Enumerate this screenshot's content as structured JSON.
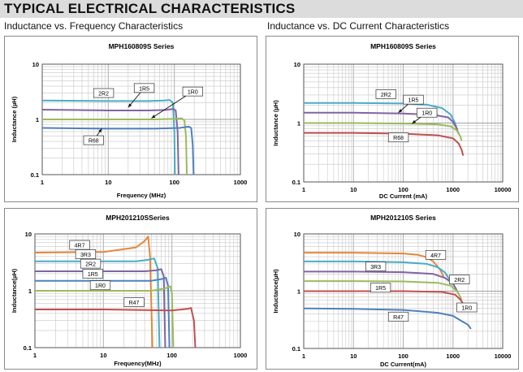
{
  "page": {
    "title": "TYPICAL ELECTRICAL CHARACTERISTICS",
    "subtitle_left": "Inductance vs. Frequency Characteristics",
    "subtitle_right": "Inductance vs. DC Current Characteristics"
  },
  "chart_data": [
    {
      "type": "line",
      "title": "MPH160809S Series",
      "xlabel": "Frequency (MHz)",
      "ylabel": "Inductance (µH)",
      "xscale": "log",
      "yscale": "log",
      "xlim": [
        1,
        1000
      ],
      "ylim": [
        0.1,
        10
      ],
      "xticks": [
        "1",
        "10",
        "100",
        "1000"
      ],
      "yticks": [
        "0.1",
        "1",
        "10"
      ],
      "grid": true,
      "series": [
        {
          "name": "2R2",
          "color": "#4aacc6",
          "label_at": [
            8.5,
            3.0
          ],
          "x": [
            1,
            10,
            40,
            70,
            85,
            95,
            100,
            102
          ],
          "y": [
            2.2,
            2.15,
            2.15,
            2.2,
            2.25,
            2.0,
            0.6,
            0.1
          ]
        },
        {
          "name": "1R5",
          "color": "#8064a2",
          "label_at": [
            35,
            3.7
          ],
          "x": [
            1,
            10,
            40,
            75,
            95,
            105,
            112,
            116
          ],
          "y": [
            1.5,
            1.45,
            1.45,
            1.48,
            1.55,
            1.45,
            0.6,
            0.1
          ]
        },
        {
          "name": "1R0",
          "color": "#9bbb59",
          "label_at": [
            190,
            3.2
          ],
          "x": [
            1,
            10,
            50,
            100,
            130,
            142,
            150,
            155
          ],
          "y": [
            1.0,
            1.0,
            1.0,
            1.02,
            1.05,
            0.95,
            0.5,
            0.1
          ]
        },
        {
          "name": "R68",
          "color": "#4f81bd",
          "label_at": [
            6,
            0.42
          ],
          "x": [
            1,
            10,
            50,
            120,
            165,
            180,
            190,
            196
          ],
          "y": [
            0.7,
            0.68,
            0.68,
            0.7,
            0.74,
            0.7,
            0.35,
            0.1
          ]
        }
      ],
      "annotations": [
        {
          "text": "2R2",
          "label_at": [
            8.5,
            3.0
          ],
          "arrow_to": null
        },
        {
          "text": "1R5",
          "label_at": [
            35,
            3.7
          ],
          "arrow_to": [
            20,
            1.65
          ]
        },
        {
          "text": "1R0",
          "label_at": [
            190,
            3.2
          ],
          "arrow_to": [
            45,
            1.05
          ]
        },
        {
          "text": "R68",
          "label_at": [
            6,
            0.42
          ],
          "arrow_to": [
            8,
            0.68
          ]
        }
      ]
    },
    {
      "type": "line",
      "title": "MPH160809S Series",
      "xlabel": "DC Current (mA)",
      "ylabel": "Inductance (µH)",
      "xscale": "log",
      "yscale": "log",
      "xlim": [
        1,
        10000
      ],
      "ylim": [
        0.1,
        10
      ],
      "xticks": [
        "1",
        "10",
        "100",
        "1000",
        "10000"
      ],
      "yticks": [
        "0.1",
        "1",
        "10"
      ],
      "grid": true,
      "series": [
        {
          "name": "2R2",
          "color": "#4aacc6",
          "label_at": [
            45,
            3.1
          ],
          "x": [
            1,
            10,
            100,
            300,
            600,
            900,
            1100,
            1200
          ],
          "y": [
            2.2,
            2.2,
            2.15,
            2.05,
            1.8,
            1.4,
            1.0,
            0.8
          ]
        },
        {
          "name": "1R5",
          "color": "#8064a2",
          "label_at": [
            160,
            2.5
          ],
          "x": [
            1,
            10,
            100,
            400,
            800,
            1000,
            1200,
            1300
          ],
          "y": [
            1.5,
            1.5,
            1.45,
            1.38,
            1.25,
            1.05,
            0.8,
            0.65
          ]
        },
        {
          "name": "1R0",
          "color": "#9bbb59",
          "label_at": [
            300,
            1.5
          ],
          "x": [
            1,
            10,
            100,
            500,
            900,
            1200,
            1400,
            1500
          ],
          "y": [
            1.0,
            1.0,
            0.98,
            0.95,
            0.88,
            0.75,
            0.6,
            0.5
          ]
        },
        {
          "name": "R68",
          "color": "#c0504d",
          "label_at": [
            80,
            0.57
          ],
          "x": [
            1,
            10,
            100,
            500,
            1000,
            1300,
            1500,
            1600
          ],
          "y": [
            0.68,
            0.68,
            0.66,
            0.62,
            0.55,
            0.45,
            0.35,
            0.28
          ]
        }
      ],
      "annotations": [
        {
          "text": "2R2",
          "label_at": [
            45,
            3.1
          ],
          "arrow_to": null
        },
        {
          "text": "1R5",
          "label_at": [
            160,
            2.5
          ],
          "arrow_to": [
            80,
            1.5
          ]
        },
        {
          "text": "1R0",
          "label_at": [
            300,
            1.5
          ],
          "arrow_to": [
            150,
            0.98
          ]
        },
        {
          "text": "R68",
          "label_at": [
            80,
            0.57
          ],
          "arrow_to": null
        }
      ]
    },
    {
      "type": "line",
      "title": "MPH201210SSeries",
      "xlabel": "Frequency(MHz)",
      "ylabel": "Inductance(µH)",
      "xscale": "log",
      "yscale": "log",
      "xlim": [
        1,
        1000
      ],
      "ylim": [
        0.1,
        10
      ],
      "xticks": [
        "1",
        "10",
        "100",
        "1000"
      ],
      "yticks": [
        "0.1",
        "1",
        "10"
      ],
      "grid": true,
      "series": [
        {
          "name": "4R7",
          "color": "#e5873a",
          "label_at": [
            4.5,
            6.4
          ],
          "x": [
            1,
            10,
            30,
            40,
            45,
            48,
            52
          ],
          "y": [
            4.7,
            4.8,
            5.8,
            7.5,
            9.0,
            4.0,
            0.1
          ]
        },
        {
          "name": "3R3",
          "color": "#4aacc6",
          "label_at": [
            5.5,
            4.4
          ],
          "x": [
            1,
            10,
            30,
            45,
            55,
            62,
            66
          ],
          "y": [
            3.3,
            3.3,
            3.3,
            3.5,
            3.7,
            2.5,
            0.1
          ]
        },
        {
          "name": "2R2",
          "color": "#8064a2",
          "label_at": [
            6.5,
            3.0
          ],
          "x": [
            1,
            10,
            40,
            60,
            70,
            76,
            80
          ],
          "y": [
            2.2,
            2.2,
            2.2,
            2.3,
            2.4,
            1.8,
            0.1
          ]
        },
        {
          "name": "1R5",
          "color": "#4f81bd",
          "label_at": [
            7,
            2.0
          ],
          "x": [
            1,
            10,
            50,
            70,
            82,
            88,
            92
          ],
          "y": [
            1.5,
            1.5,
            1.5,
            1.6,
            1.7,
            1.2,
            0.1
          ]
        },
        {
          "name": "1R0",
          "color": "#9bbb59",
          "label_at": [
            9,
            1.25
          ],
          "x": [
            1,
            10,
            50,
            80,
            95,
            100,
            105
          ],
          "y": [
            1.0,
            1.0,
            1.0,
            1.1,
            1.2,
            0.9,
            0.1
          ]
        },
        {
          "name": "R47",
          "color": "#c0504d",
          "label_at": [
            28,
            0.63
          ],
          "x": [
            1,
            10,
            100,
            170,
            190,
            210,
            220
          ],
          "y": [
            0.47,
            0.47,
            0.45,
            0.48,
            0.5,
            0.3,
            0.1
          ]
        }
      ]
    },
    {
      "type": "line",
      "title": "MPH201210S Series",
      "xlabel": "DC Current(mA)",
      "ylabel": "Inductance(µH)",
      "xscale": "log",
      "yscale": "log",
      "xlim": [
        1,
        10000
      ],
      "ylim": [
        0.1,
        10
      ],
      "xticks": [
        "1",
        "10",
        "100",
        "1000",
        "10000"
      ],
      "yticks": [
        "0.1",
        "1",
        "10"
      ],
      "grid": true,
      "series": [
        {
          "name": "4R7",
          "color": "#e5873a",
          "label_at": [
            450,
            4.3
          ],
          "x": [
            1,
            10,
            100,
            200,
            300,
            400,
            550,
            650
          ],
          "y": [
            4.7,
            4.7,
            4.55,
            4.3,
            3.9,
            3.3,
            2.4,
            1.8
          ]
        },
        {
          "name": "3R3",
          "color": "#4aacc6",
          "label_at": [
            28,
            2.7
          ],
          "x": [
            1,
            10,
            100,
            300,
            500,
            700,
            850,
            950
          ],
          "y": [
            3.3,
            3.3,
            3.2,
            3.0,
            2.6,
            2.1,
            1.6,
            1.3
          ]
        },
        {
          "name": "2R2",
          "color": "#8064a2",
          "label_at": [
            1350,
            1.6
          ],
          "x": [
            1,
            10,
            100,
            400,
            700,
            1000,
            1150,
            1250
          ],
          "y": [
            2.2,
            2.2,
            2.15,
            2.0,
            1.7,
            1.35,
            1.1,
            0.95
          ]
        },
        {
          "name": "1R5",
          "color": "#9bbb59",
          "label_at": [
            35,
            1.15
          ],
          "x": [
            1,
            10,
            100,
            500,
            900,
            1200,
            1400,
            1500
          ],
          "y": [
            1.5,
            1.5,
            1.48,
            1.4,
            1.25,
            1.0,
            0.8,
            0.7
          ]
        },
        {
          "name": "1R0",
          "color": "#c0504d",
          "label_at": [
            1900,
            0.52
          ],
          "x": [
            1,
            10,
            100,
            600,
            1100,
            1400,
            1600,
            1750
          ],
          "y": [
            1.0,
            1.0,
            1.0,
            0.97,
            0.87,
            0.72,
            0.6,
            0.5
          ]
        },
        {
          "name": "R47",
          "color": "#4f81bd",
          "label_at": [
            80,
            0.36
          ],
          "x": [
            1,
            10,
            100,
            500,
            1000,
            1500,
            2000,
            2300
          ],
          "y": [
            0.5,
            0.49,
            0.47,
            0.42,
            0.37,
            0.3,
            0.26,
            0.22
          ]
        }
      ]
    }
  ]
}
